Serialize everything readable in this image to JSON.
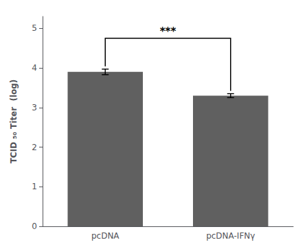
{
  "chart_data": {
    "type": "bar",
    "categories": [
      "pcDNA",
      "pcDNA-IFNγ"
    ],
    "values": [
      3.9,
      3.3
    ],
    "errors": [
      0.07,
      0.05
    ],
    "color": "#606060",
    "ylabel": "TCID ₅₀ Titer  (log)",
    "ylim": [
      0,
      5.3
    ],
    "yticks": [
      0,
      1,
      2,
      3,
      4,
      5
    ],
    "grid": false,
    "annotations": [
      {
        "text": "***",
        "y": 4.75,
        "between": [
          "pcDNA",
          "pcDNA-IFNγ"
        ]
      }
    ]
  }
}
